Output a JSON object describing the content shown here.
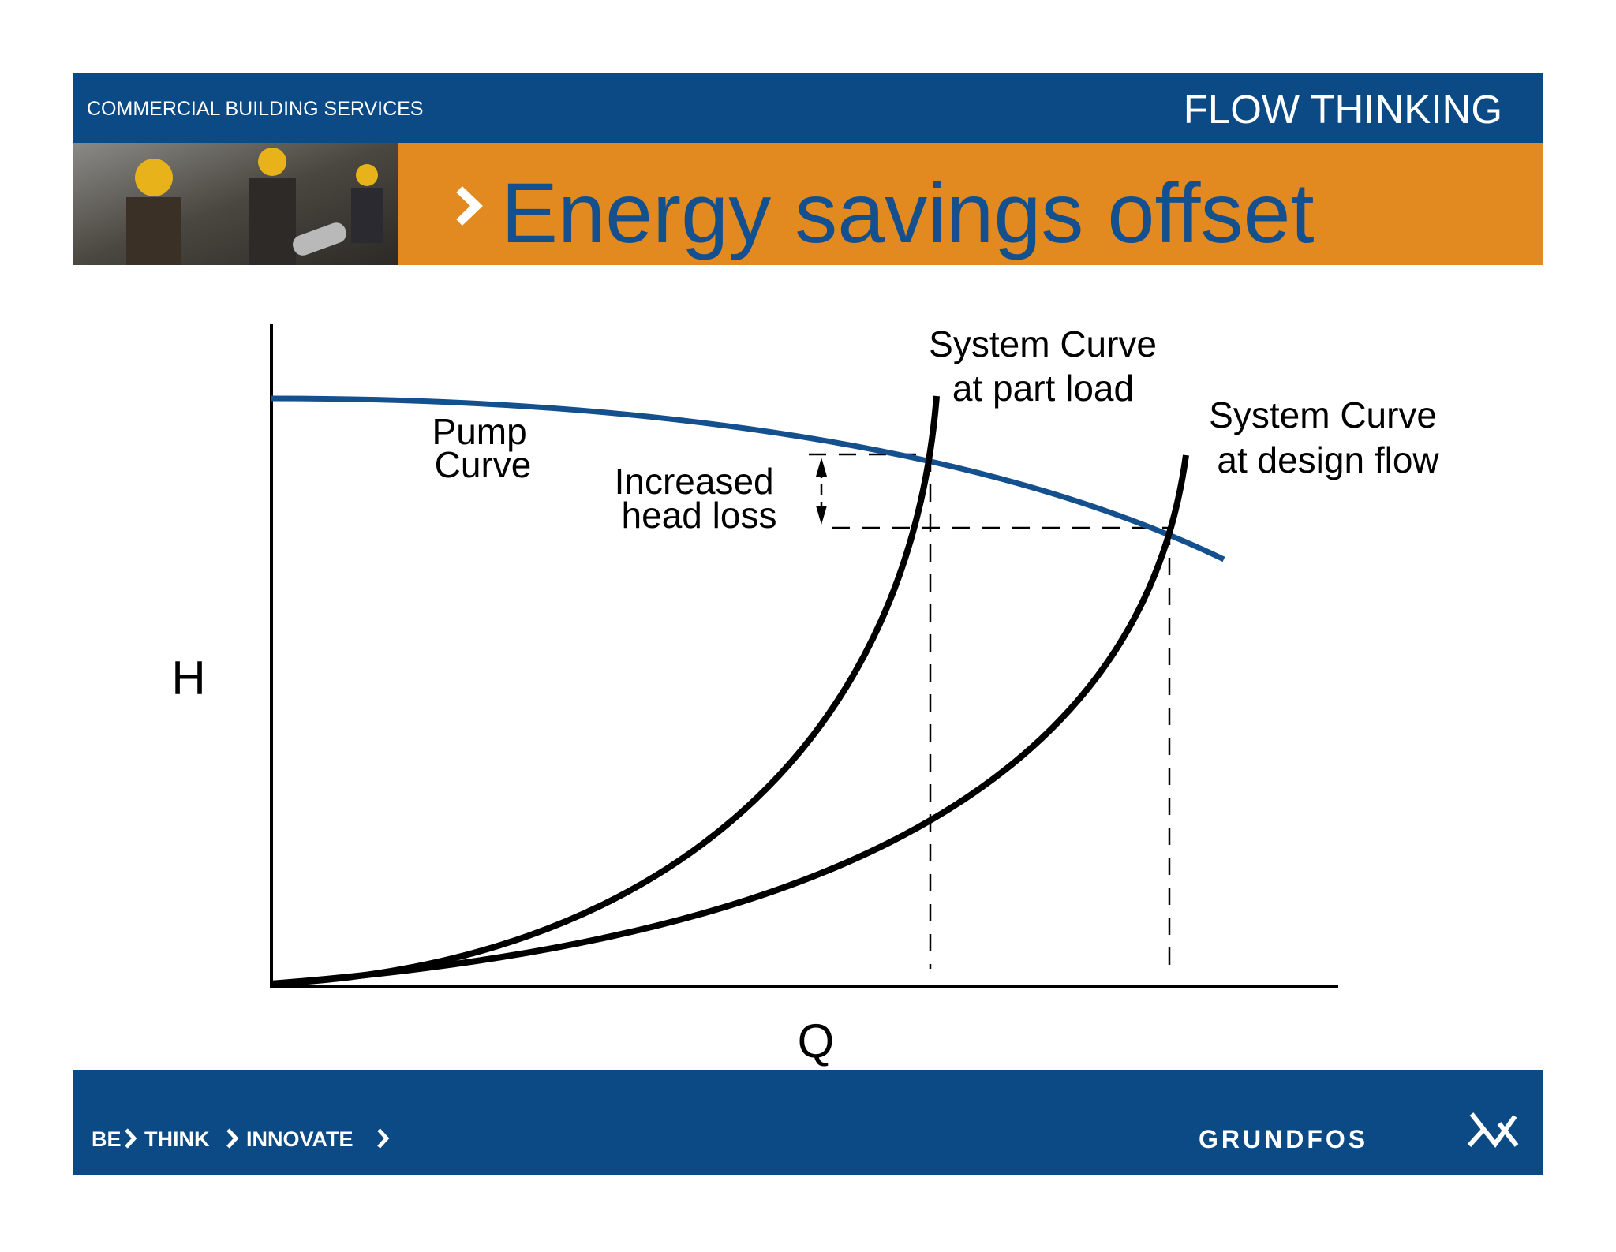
{
  "header": {
    "section": "COMMERCIAL BUILDING SERVICES",
    "tagline": "FLOW THINKING",
    "title": "Energy savings offset"
  },
  "diagram": {
    "y_axis_label": "H",
    "x_axis_label": "Q",
    "labels": {
      "pump_curve": [
        "Pump",
        "Curve"
      ],
      "head_loss": [
        "Increased",
        "head loss"
      ],
      "part_load": [
        "System Curve",
        "at part load"
      ],
      "design_flow": [
        "System Curve",
        "at design flow"
      ]
    }
  },
  "footer": {
    "slogan": [
      "BE",
      "THINK",
      "INNOVATE"
    ],
    "logo": "GRUNDFOS"
  }
}
